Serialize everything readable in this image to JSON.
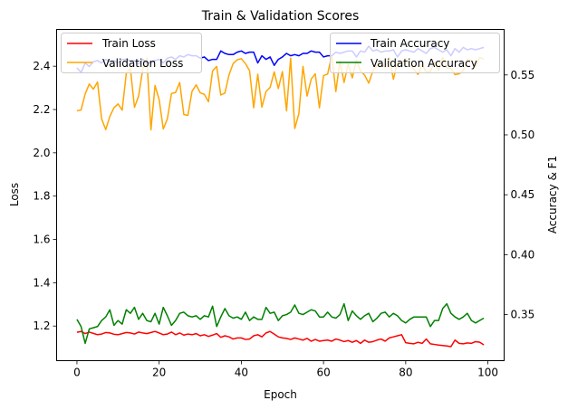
{
  "chart_data": {
    "type": "line",
    "title": "Train & Validation Scores",
    "xlabel": "Epoch",
    "ylabel_left": "Loss",
    "ylabel_right": "Accuracy & F1",
    "xlim": [
      -4.95,
      103.95
    ],
    "ylim_left": [
      1.04,
      2.57
    ],
    "ylim_right": [
      0.3115,
      0.588
    ],
    "xticks": [
      0,
      20,
      40,
      60,
      80,
      100
    ],
    "yticks_left": [
      1.2,
      1.4,
      1.6,
      1.8,
      2.0,
      2.2,
      2.4
    ],
    "yticks_right": [
      0.35,
      0.4,
      0.45,
      0.5,
      0.55
    ],
    "xtick_labels": [
      "0",
      "20",
      "40",
      "60",
      "80",
      "100"
    ],
    "ytick_labels_left": [
      "1.2",
      "1.4",
      "1.6",
      "1.8",
      "2.0",
      "2.2",
      "2.4"
    ],
    "ytick_labels_right": [
      "0.35",
      "0.40",
      "0.45",
      "0.50",
      "0.55"
    ],
    "legend_left_placement": "upper-left",
    "legend_right_placement": "upper-right",
    "series": [
      {
        "name": "Train Loss",
        "axis": "left",
        "color": "#ff0000",
        "values": [
          1.171,
          1.175,
          1.165,
          1.172,
          1.166,
          1.16,
          1.163,
          1.17,
          1.168,
          1.162,
          1.16,
          1.165,
          1.17,
          1.168,
          1.163,
          1.172,
          1.168,
          1.165,
          1.17,
          1.175,
          1.168,
          1.16,
          1.163,
          1.172,
          1.16,
          1.168,
          1.158,
          1.163,
          1.16,
          1.165,
          1.155,
          1.16,
          1.152,
          1.158,
          1.165,
          1.148,
          1.155,
          1.15,
          1.14,
          1.145,
          1.145,
          1.138,
          1.14,
          1.155,
          1.16,
          1.15,
          1.168,
          1.175,
          1.163,
          1.15,
          1.145,
          1.143,
          1.138,
          1.145,
          1.14,
          1.135,
          1.143,
          1.13,
          1.138,
          1.13,
          1.133,
          1.135,
          1.13,
          1.14,
          1.135,
          1.128,
          1.133,
          1.125,
          1.133,
          1.12,
          1.135,
          1.125,
          1.128,
          1.135,
          1.14,
          1.13,
          1.145,
          1.15,
          1.155,
          1.16,
          1.123,
          1.12,
          1.118,
          1.125,
          1.12,
          1.14,
          1.118,
          1.115,
          1.112,
          1.11,
          1.108,
          1.105,
          1.135,
          1.12,
          1.118,
          1.122,
          1.12,
          1.128,
          1.125,
          1.113
        ]
      },
      {
        "name": "Validation Loss",
        "axis": "left",
        "color": "#ffa500",
        "values": [
          2.194,
          2.198,
          2.272,
          2.318,
          2.294,
          2.327,
          2.157,
          2.107,
          2.168,
          2.208,
          2.226,
          2.197,
          2.366,
          2.389,
          2.21,
          2.262,
          2.385,
          2.437,
          2.106,
          2.311,
          2.246,
          2.11,
          2.157,
          2.274,
          2.279,
          2.325,
          2.177,
          2.173,
          2.284,
          2.314,
          2.277,
          2.27,
          2.236,
          2.378,
          2.399,
          2.267,
          2.276,
          2.36,
          2.412,
          2.43,
          2.435,
          2.412,
          2.38,
          2.208,
          2.363,
          2.211,
          2.283,
          2.302,
          2.374,
          2.297,
          2.375,
          2.194,
          2.437,
          2.112,
          2.181,
          2.399,
          2.262,
          2.341,
          2.365,
          2.208,
          2.357,
          2.364,
          2.45,
          2.283,
          2.425,
          2.325,
          2.41,
          2.346,
          2.429,
          2.378,
          2.359,
          2.322,
          2.378,
          2.402,
          2.415,
          2.393,
          2.44,
          2.34,
          2.416,
          2.409,
          2.435,
          2.405,
          2.385,
          2.362,
          2.409,
          2.372,
          2.376,
          2.42,
          2.38,
          2.441,
          2.393,
          2.389,
          2.361,
          2.365,
          2.379,
          2.433,
          2.427,
          2.399,
          2.441,
          2.433
        ]
      },
      {
        "name": "Train Accuracy",
        "axis": "right",
        "color": "#0000ff",
        "values": [
          0.556,
          0.552,
          0.56,
          0.557,
          0.561,
          0.562,
          0.56,
          0.563,
          0.561,
          0.562,
          0.56,
          0.563,
          0.563,
          0.562,
          0.562,
          0.559,
          0.563,
          0.56,
          0.56,
          0.562,
          0.563,
          0.56,
          0.564,
          0.565,
          0.563,
          0.566,
          0.565,
          0.567,
          0.566,
          0.566,
          0.564,
          0.565,
          0.562,
          0.563,
          0.563,
          0.57,
          0.568,
          0.567,
          0.567,
          0.569,
          0.57,
          0.568,
          0.569,
          0.569,
          0.56,
          0.566,
          0.563,
          0.565,
          0.558,
          0.563,
          0.565,
          0.568,
          0.566,
          0.567,
          0.566,
          0.568,
          0.568,
          0.57,
          0.569,
          0.569,
          0.565,
          0.566,
          0.566,
          0.569,
          0.568,
          0.569,
          0.57,
          0.57,
          0.565,
          0.57,
          0.569,
          0.574,
          0.57,
          0.571,
          0.569,
          0.57,
          0.57,
          0.571,
          0.565,
          0.57,
          0.571,
          0.57,
          0.569,
          0.572,
          0.57,
          0.568,
          0.572,
          0.573,
          0.571,
          0.569,
          0.571,
          0.566,
          0.572,
          0.569,
          0.573,
          0.571,
          0.572,
          0.571,
          0.572,
          0.573
        ]
      },
      {
        "name": "Validation Accuracy",
        "axis": "right",
        "color": "#008000",
        "values": [
          0.346,
          0.34,
          0.326,
          0.338,
          0.339,
          0.34,
          0.345,
          0.348,
          0.354,
          0.341,
          0.345,
          0.342,
          0.354,
          0.351,
          0.356,
          0.346,
          0.351,
          0.345,
          0.344,
          0.351,
          0.342,
          0.356,
          0.349,
          0.341,
          0.345,
          0.351,
          0.352,
          0.349,
          0.348,
          0.349,
          0.346,
          0.349,
          0.348,
          0.357,
          0.34,
          0.348,
          0.355,
          0.349,
          0.347,
          0.348,
          0.346,
          0.352,
          0.345,
          0.348,
          0.346,
          0.346,
          0.356,
          0.351,
          0.352,
          0.345,
          0.349,
          0.35,
          0.352,
          0.358,
          0.351,
          0.35,
          0.352,
          0.354,
          0.353,
          0.348,
          0.348,
          0.352,
          0.348,
          0.347,
          0.35,
          0.359,
          0.345,
          0.353,
          0.349,
          0.346,
          0.349,
          0.351,
          0.344,
          0.347,
          0.351,
          0.352,
          0.348,
          0.351,
          0.349,
          0.345,
          0.343,
          0.346,
          0.348,
          0.348,
          0.348,
          0.348,
          0.34,
          0.345,
          0.345,
          0.355,
          0.359,
          0.351,
          0.348,
          0.346,
          0.348,
          0.351,
          0.345,
          0.343,
          0.345,
          0.347
        ]
      }
    ]
  }
}
